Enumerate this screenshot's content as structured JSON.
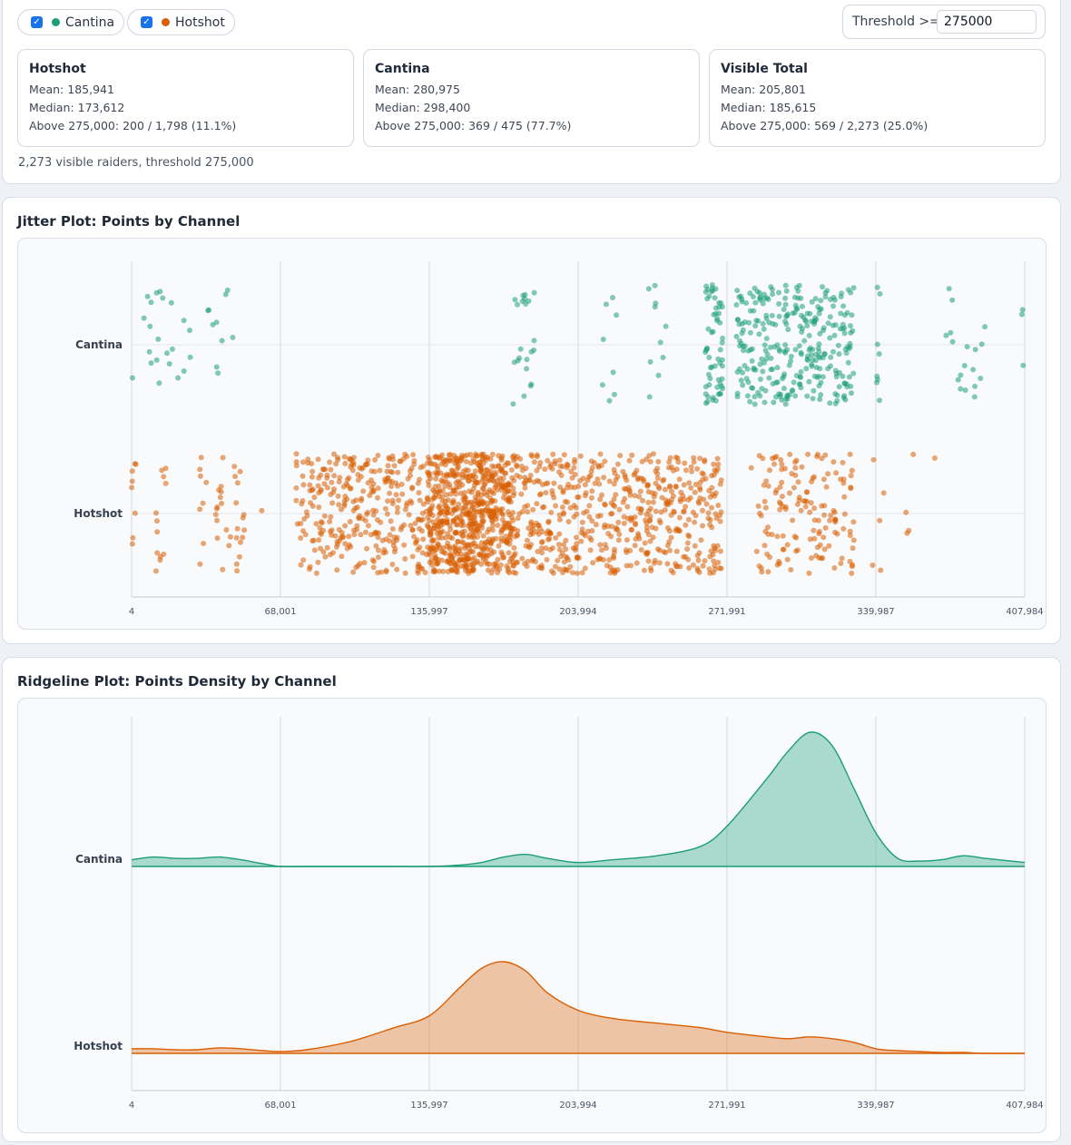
{
  "controls": {
    "series_toggles": [
      {
        "label": "Cantina",
        "checked": true,
        "color": "#1b9e77"
      },
      {
        "label": "Hotshot",
        "checked": true,
        "color": "#d95f02"
      }
    ],
    "threshold_label": "Threshold >=",
    "threshold_value": "275000"
  },
  "stats": [
    {
      "title": "Hotshot",
      "mean": "Mean: 185,941",
      "median": "Median: 173,612",
      "above": "Above 275,000: 200 / 1,798 (11.1%)"
    },
    {
      "title": "Cantina",
      "mean": "Mean: 280,975",
      "median": "Median: 298,400",
      "above": "Above 275,000: 369 / 475 (77.7%)"
    },
    {
      "title": "Visible Total",
      "mean": "Mean: 205,801",
      "median": "Median: 185,615",
      "above": "Above 275,000: 569 / 2,273 (25.0%)"
    }
  ],
  "summary": "2,273 visible raiders, threshold 275,000",
  "chart_data": [
    {
      "type": "scatter",
      "title": "Jitter Plot: Points by Channel",
      "xlim": [
        4,
        407984
      ],
      "x_ticks": [
        4,
        68001,
        135997,
        203994,
        271991,
        339987,
        407984
      ],
      "x_tick_labels": [
        "4",
        "68,001",
        "135,997",
        "203,994",
        "271,991",
        "339,987",
        "407,984"
      ],
      "categories": [
        "Cantina",
        "Hotshot"
      ],
      "series": [
        {
          "name": "Cantina",
          "color": "#1b9e77",
          "count": 475,
          "mean": 280975,
          "median": 298400,
          "clusters": [
            {
              "min": 4,
              "max": 52000,
              "count": 32
            },
            {
              "min": 174000,
              "max": 184000,
              "count": 22
            },
            {
              "min": 214000,
              "max": 222000,
              "count": 8
            },
            {
              "min": 236000,
              "max": 245000,
              "count": 10
            },
            {
              "min": 262000,
              "max": 270000,
              "count": 60
            },
            {
              "min": 276000,
              "max": 330000,
              "count": 300
            },
            {
              "min": 340000,
              "max": 342000,
              "count": 8
            },
            {
              "min": 372000,
              "max": 390000,
              "count": 18
            },
            {
              "min": 406000,
              "max": 407984,
              "count": 3
            }
          ]
        },
        {
          "name": "Hotshot",
          "color": "#d95f02",
          "count": 1798,
          "mean": 185941,
          "median": 173612,
          "clusters": [
            {
              "min": 4,
              "max": 2000,
              "count": 8
            },
            {
              "min": 9000,
              "max": 16000,
              "count": 12
            },
            {
              "min": 29000,
              "max": 35000,
              "count": 8
            },
            {
              "min": 38000,
              "max": 52000,
              "count": 30
            },
            {
              "min": 59000,
              "max": 60000,
              "count": 1
            },
            {
              "min": 75000,
              "max": 135000,
              "count": 320
            },
            {
              "min": 135000,
              "max": 175000,
              "count": 700
            },
            {
              "min": 175000,
              "max": 270000,
              "count": 560
            },
            {
              "min": 283000,
              "max": 330000,
              "count": 150
            },
            {
              "min": 338000,
              "max": 344000,
              "count": 5
            },
            {
              "min": 352000,
              "max": 358000,
              "count": 4
            },
            {
              "min": 365000,
              "max": 367000,
              "count": 1
            }
          ]
        }
      ]
    },
    {
      "type": "area",
      "title": "Ridgeline Plot: Points Density by Channel",
      "xlim": [
        4,
        407984
      ],
      "x_ticks": [
        4,
        68001,
        135997,
        203994,
        271991,
        339987,
        407984
      ],
      "x_tick_labels": [
        "4",
        "68,001",
        "135,997",
        "203,994",
        "271,991",
        "339,987",
        "407,984"
      ],
      "x": [
        4,
        10000,
        20000,
        30000,
        40000,
        50000,
        60000,
        68001,
        80000,
        100000,
        120000,
        135997,
        150000,
        160000,
        170000,
        180000,
        190000,
        203994,
        220000,
        240000,
        260000,
        271991,
        290000,
        300000,
        310000,
        320000,
        330000,
        339987,
        350000,
        360000,
        370000,
        380000,
        390000,
        407984
      ],
      "series": [
        {
          "name": "Cantina",
          "color": "#1b9e77",
          "density": [
            0.05,
            0.07,
            0.06,
            0.06,
            0.07,
            0.05,
            0.02,
            0.0,
            0.0,
            0.0,
            0.0,
            0.0,
            0.01,
            0.03,
            0.07,
            0.09,
            0.06,
            0.03,
            0.05,
            0.08,
            0.15,
            0.3,
            0.65,
            0.86,
            1.0,
            0.9,
            0.58,
            0.25,
            0.06,
            0.04,
            0.05,
            0.08,
            0.06,
            0.03
          ]
        },
        {
          "name": "Hotshot",
          "color": "#d95f02",
          "density": [
            0.05,
            0.05,
            0.04,
            0.04,
            0.06,
            0.05,
            0.03,
            0.02,
            0.04,
            0.13,
            0.28,
            0.41,
            0.72,
            0.93,
            1.0,
            0.9,
            0.66,
            0.47,
            0.38,
            0.33,
            0.28,
            0.23,
            0.18,
            0.16,
            0.18,
            0.16,
            0.12,
            0.05,
            0.03,
            0.02,
            0.01,
            0.01,
            0.0,
            0.0
          ]
        }
      ]
    }
  ]
}
